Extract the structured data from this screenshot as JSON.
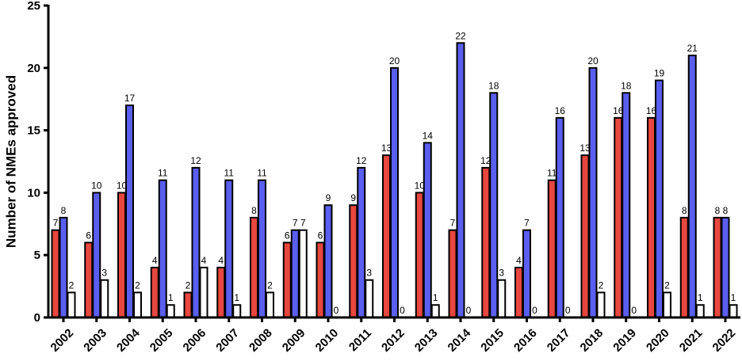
{
  "chart_data": {
    "type": "bar",
    "title": "",
    "xlabel": "",
    "ylabel": "Number of NMEs approved",
    "ylim": [
      0,
      25
    ],
    "yticks": [
      "0",
      "5",
      "10",
      "15",
      "20",
      "25"
    ],
    "categories": [
      "2002",
      "2003",
      "2004",
      "2005",
      "2006",
      "2007",
      "2008",
      "2009",
      "2010",
      "2011",
      "2012",
      "2013",
      "2014",
      "2015",
      "2016",
      "2017",
      "2018",
      "2019",
      "2020",
      "2021",
      "2022"
    ],
    "series": [
      {
        "color": "#e8473f",
        "values": [
          7,
          6,
          10,
          4,
          2,
          4,
          8,
          6,
          6,
          9,
          13,
          10,
          7,
          12,
          4,
          11,
          13,
          16,
          16,
          8,
          8
        ]
      },
      {
        "color": "#5a5ff0",
        "values": [
          8,
          10,
          17,
          11,
          12,
          11,
          11,
          7,
          9,
          12,
          20,
          14,
          22,
          18,
          7,
          16,
          20,
          18,
          19,
          21,
          8
        ]
      },
      {
        "color": "#ffffff",
        "values": [
          2,
          3,
          2,
          1,
          4,
          1,
          2,
          7,
          0,
          3,
          0,
          1,
          0,
          3,
          0,
          0,
          2,
          0,
          2,
          1,
          1
        ]
      }
    ],
    "grid": false,
    "legend": "none"
  }
}
